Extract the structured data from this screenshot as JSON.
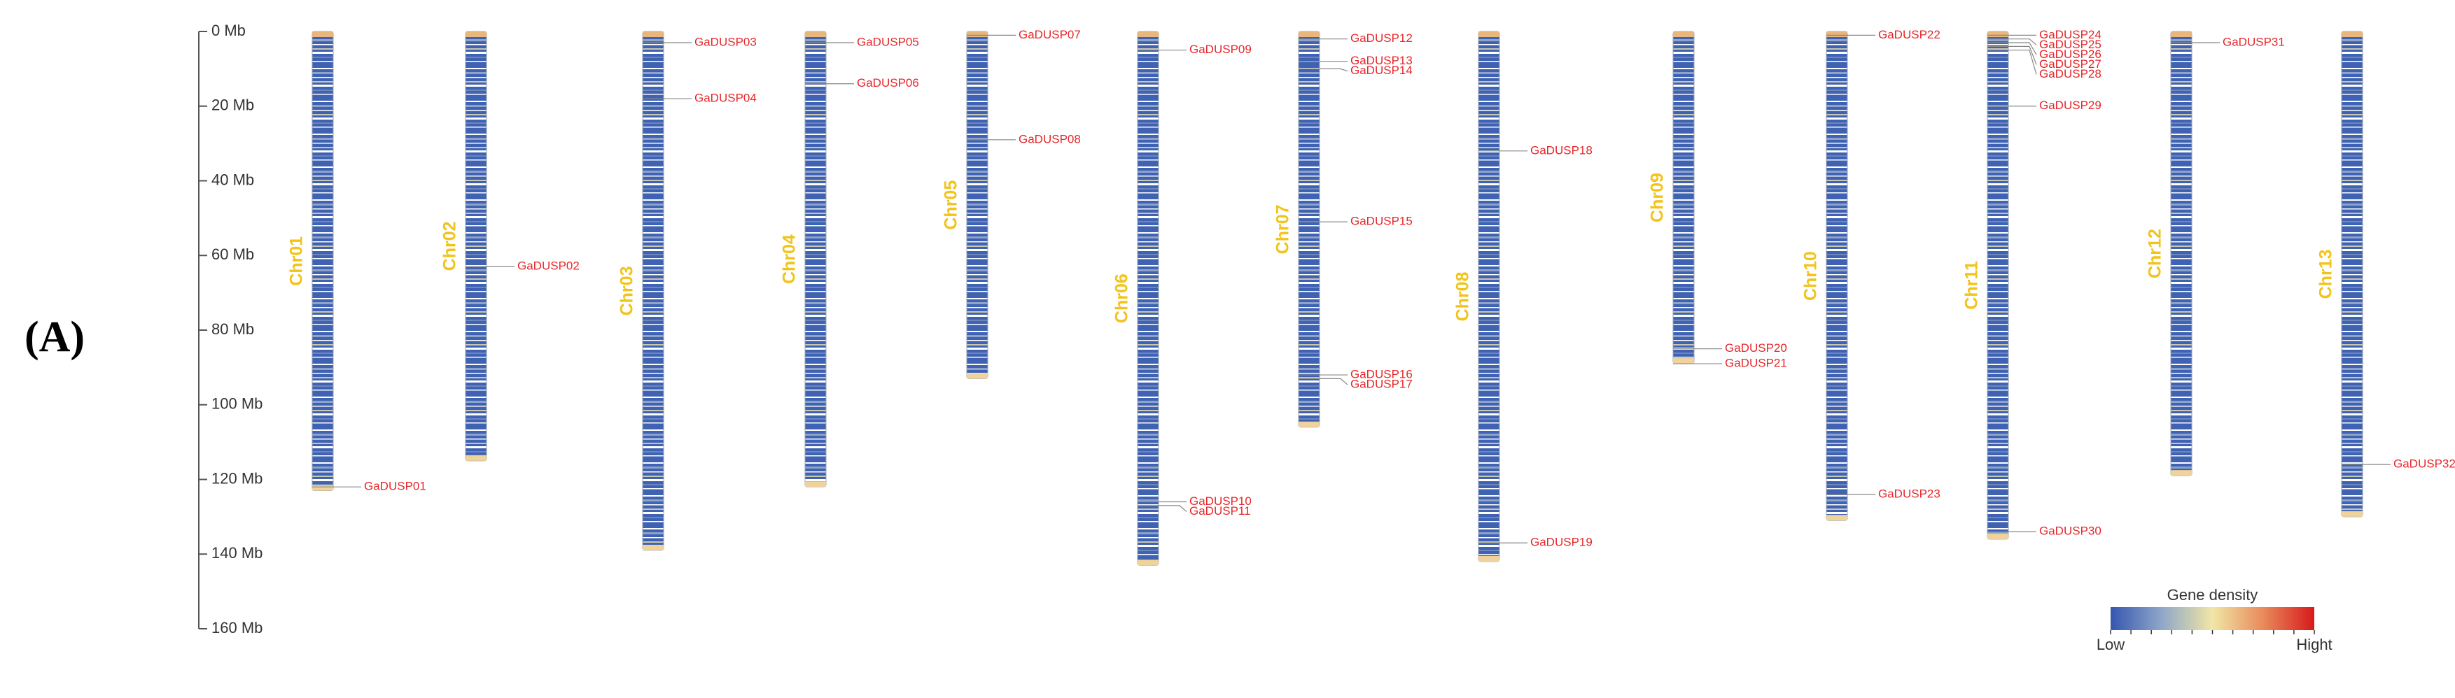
{
  "chart_data": {
    "type": "ideogram",
    "panel_label": "(A)",
    "ylim": [
      0,
      160
    ],
    "yticks": [
      {
        "value": 0,
        "label": "0 Mb"
      },
      {
        "value": 20,
        "label": "20 Mb"
      },
      {
        "value": 40,
        "label": "40 Mb"
      },
      {
        "value": 60,
        "label": "60 Mb"
      },
      {
        "value": 80,
        "label": "80 Mb"
      },
      {
        "value": 100,
        "label": "100 Mb"
      },
      {
        "value": 120,
        "label": "120 Mb"
      },
      {
        "value": 140,
        "label": "140 Mb"
      },
      {
        "value": 160,
        "label": "160 Mb"
      }
    ],
    "chromosome_label_color": "#f2c318",
    "gene_label_color": "#e8262a",
    "chromosomes": [
      {
        "name": "Chr01",
        "length": 123,
        "genes": [
          {
            "name": "GaDUSP01",
            "position": 122
          }
        ]
      },
      {
        "name": "Chr02",
        "length": 115,
        "genes": [
          {
            "name": "GaDUSP02",
            "position": 63
          }
        ]
      },
      {
        "name": "Chr03",
        "length": 139,
        "genes": [
          {
            "name": "GaDUSP03",
            "position": 3
          },
          {
            "name": "GaDUSP04",
            "position": 18
          }
        ]
      },
      {
        "name": "Chr04",
        "length": 122,
        "genes": [
          {
            "name": "GaDUSP05",
            "position": 3
          },
          {
            "name": "GaDUSP06",
            "position": 14
          }
        ]
      },
      {
        "name": "Chr05",
        "length": 93,
        "genes": [
          {
            "name": "GaDUSP07",
            "position": 1
          },
          {
            "name": "GaDUSP08",
            "position": 29
          }
        ]
      },
      {
        "name": "Chr06",
        "length": 143,
        "genes": [
          {
            "name": "GaDUSP09",
            "position": 5
          },
          {
            "name": "GaDUSP10",
            "position": 126
          },
          {
            "name": "GaDUSP11",
            "position": 127
          }
        ]
      },
      {
        "name": "Chr07",
        "length": 106,
        "genes": [
          {
            "name": "GaDUSP12",
            "position": 2
          },
          {
            "name": "GaDUSP13",
            "position": 8
          },
          {
            "name": "GaDUSP14",
            "position": 10
          },
          {
            "name": "GaDUSP15",
            "position": 51
          },
          {
            "name": "GaDUSP16",
            "position": 92
          },
          {
            "name": "GaDUSP17",
            "position": 93
          }
        ]
      },
      {
        "name": "Chr08",
        "length": 142,
        "genes": [
          {
            "name": "GaDUSP18",
            "position": 32
          },
          {
            "name": "GaDUSP19",
            "position": 137
          }
        ]
      },
      {
        "name": "Chr09",
        "length": 89,
        "genes": [
          {
            "name": "GaDUSP20",
            "position": 85
          },
          {
            "name": "GaDUSP21",
            "position": 89
          }
        ]
      },
      {
        "name": "Chr10",
        "length": 131,
        "genes": [
          {
            "name": "GaDUSP22",
            "position": 1
          },
          {
            "name": "GaDUSP23",
            "position": 124
          }
        ]
      },
      {
        "name": "Chr11",
        "length": 136,
        "genes": [
          {
            "name": "GaDUSP24",
            "position": 1
          },
          {
            "name": "GaDUSP25",
            "position": 2
          },
          {
            "name": "GaDUSP26",
            "position": 3
          },
          {
            "name": "GaDUSP27",
            "position": 4
          },
          {
            "name": "GaDUSP28",
            "position": 5
          },
          {
            "name": "GaDUSP29",
            "position": 20
          },
          {
            "name": "GaDUSP30",
            "position": 134
          }
        ]
      },
      {
        "name": "Chr12",
        "length": 119,
        "genes": [
          {
            "name": "GaDUSP31",
            "position": 3
          }
        ]
      },
      {
        "name": "Chr13",
        "length": 130,
        "genes": [
          {
            "name": "GaDUSP32",
            "position": 116
          }
        ]
      }
    ],
    "legend": {
      "title": "Gene density",
      "low": "Low",
      "high": "Hight",
      "colors": [
        "#3556b0",
        "#8fa6c8",
        "#f0e6a6",
        "#e98a5a",
        "#d7191c"
      ]
    }
  }
}
